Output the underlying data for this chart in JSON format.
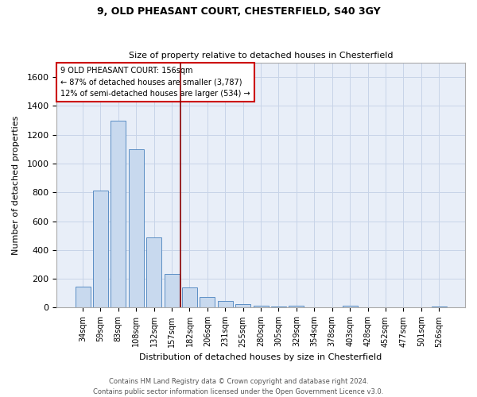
{
  "title_line1": "9, OLD PHEASANT COURT, CHESTERFIELD, S40 3GY",
  "title_line2": "Size of property relative to detached houses in Chesterfield",
  "xlabel": "Distribution of detached houses by size in Chesterfield",
  "ylabel": "Number of detached properties",
  "bar_labels": [
    "34sqm",
    "59sqm",
    "83sqm",
    "108sqm",
    "132sqm",
    "157sqm",
    "182sqm",
    "206sqm",
    "231sqm",
    "255sqm",
    "280sqm",
    "305sqm",
    "329sqm",
    "354sqm",
    "378sqm",
    "403sqm",
    "428sqm",
    "452sqm",
    "477sqm",
    "501sqm",
    "526sqm"
  ],
  "bar_values": [
    145,
    815,
    1300,
    1100,
    490,
    235,
    140,
    75,
    45,
    22,
    15,
    8,
    14,
    5,
    0,
    12,
    0,
    0,
    0,
    0,
    10
  ],
  "bar_color": "#c8d9ee",
  "bar_edge_color": "#5b8ec4",
  "vline_x_idx": 5,
  "vline_color": "#8b0000",
  "annotation_line1": "9 OLD PHEASANT COURT: 156sqm",
  "annotation_line2": "← 87% of detached houses are smaller (3,787)",
  "annotation_line3": "12% of semi-detached houses are larger (534) →",
  "annotation_box_color": "#ffffff",
  "annotation_border_color": "#cc0000",
  "ylim": [
    0,
    1700
  ],
  "yticks": [
    0,
    200,
    400,
    600,
    800,
    1000,
    1200,
    1400,
    1600
  ],
  "grid_color": "#c8d4e8",
  "bg_color": "#e8eef8",
  "footer_line1": "Contains HM Land Registry data © Crown copyright and database right 2024.",
  "footer_line2": "Contains public sector information licensed under the Open Government Licence v3.0."
}
